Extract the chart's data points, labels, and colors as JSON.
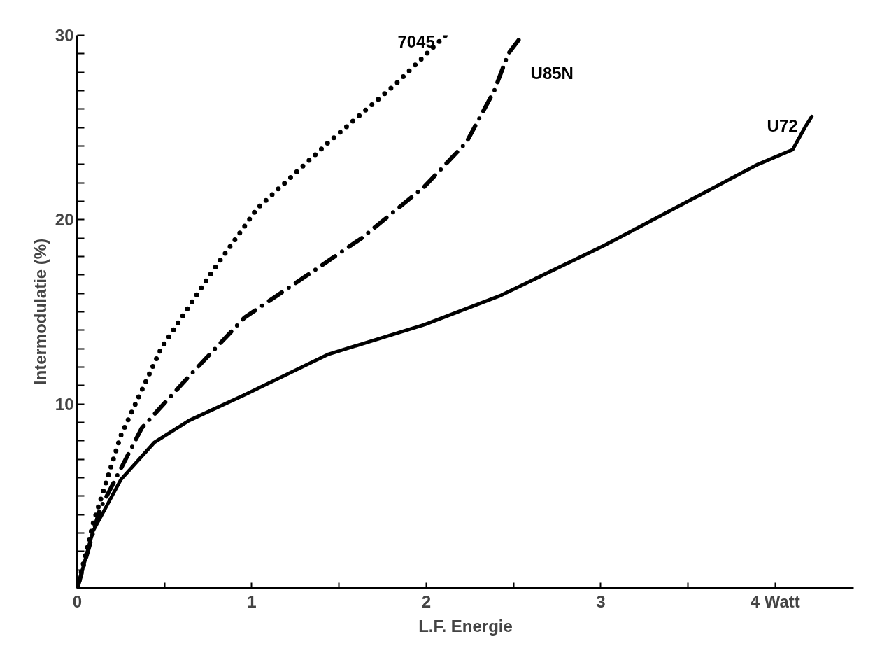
{
  "chart_data": {
    "type": "line",
    "xlabel": "L.F. Energie",
    "ylabel": "Intermodulatie (%)",
    "xlim": [
      0,
      4.45
    ],
    "ylim": [
      0,
      30
    ],
    "xticks": [
      0,
      {
        "value": 0.5,
        "label": null
      },
      1,
      {
        "value": 1.5,
        "label": null
      },
      2,
      {
        "value": 2.5,
        "label": null
      },
      3,
      {
        "value": 3.5,
        "label": null
      },
      {
        "value": 4,
        "label": "4 Watt"
      }
    ],
    "yticks": [
      {
        "value": 0,
        "label": null
      },
      {
        "value": 1,
        "label": null
      },
      {
        "value": 2,
        "label": null
      },
      {
        "value": 3,
        "label": null
      },
      {
        "value": 4,
        "label": null
      },
      {
        "value": 5,
        "label": null
      },
      {
        "value": 6,
        "label": null
      },
      {
        "value": 7,
        "label": null
      },
      {
        "value": 8,
        "label": null
      },
      {
        "value": 9,
        "label": null
      },
      10,
      {
        "value": 11,
        "label": null
      },
      {
        "value": 12,
        "label": null
      },
      {
        "value": 13,
        "label": null
      },
      {
        "value": 14,
        "label": null
      },
      {
        "value": 15,
        "label": null
      },
      {
        "value": 16,
        "label": null
      },
      {
        "value": 17,
        "label": null
      },
      {
        "value": 18,
        "label": null
      },
      {
        "value": 19,
        "label": null
      },
      20,
      {
        "value": 21,
        "label": null
      },
      {
        "value": 22,
        "label": null
      },
      {
        "value": 23,
        "label": null
      },
      {
        "value": 24,
        "label": null
      },
      {
        "value": 25,
        "label": null
      },
      {
        "value": 26,
        "label": null
      },
      {
        "value": 27,
        "label": null
      },
      {
        "value": 28,
        "label": null
      },
      {
        "value": 29,
        "label": null
      },
      30
    ],
    "grid": false,
    "marker": "none",
    "series": [
      {
        "name": "7045",
        "color": "#000000",
        "line_style": "dotted",
        "x": [
          0,
          0.09,
          0.25,
          0.48,
          0.76,
          1.03,
          1.44,
          1.83,
          2.11
        ],
        "values": [
          0,
          3.5,
          8.3,
          13,
          17,
          20.6,
          24.2,
          27.4,
          30
        ]
      },
      {
        "name": "U85N",
        "color": "#000000",
        "line_style": "dashdot",
        "x": [
          0,
          0.13,
          0.37,
          0.64,
          0.96,
          1.32,
          1.63,
          1.99,
          2.23,
          2.39,
          2.47,
          2.55
        ],
        "values": [
          0,
          4.3,
          8.7,
          11.5,
          14.7,
          17,
          19,
          21.8,
          24.2,
          27,
          29,
          30
        ]
      },
      {
        "name": "U72",
        "color": "#000000",
        "line_style": "solid",
        "x": [
          0,
          0.09,
          0.25,
          0.44,
          0.64,
          0.96,
          1.44,
          1.99,
          2.43,
          3.02,
          3.42,
          3.9,
          4.1,
          4.17,
          4.21
        ],
        "values": [
          0,
          3.1,
          5.9,
          7.9,
          9.1,
          10.5,
          12.7,
          14.3,
          15.9,
          18.6,
          20.6,
          23,
          23.8,
          25,
          25.6
        ]
      }
    ]
  }
}
